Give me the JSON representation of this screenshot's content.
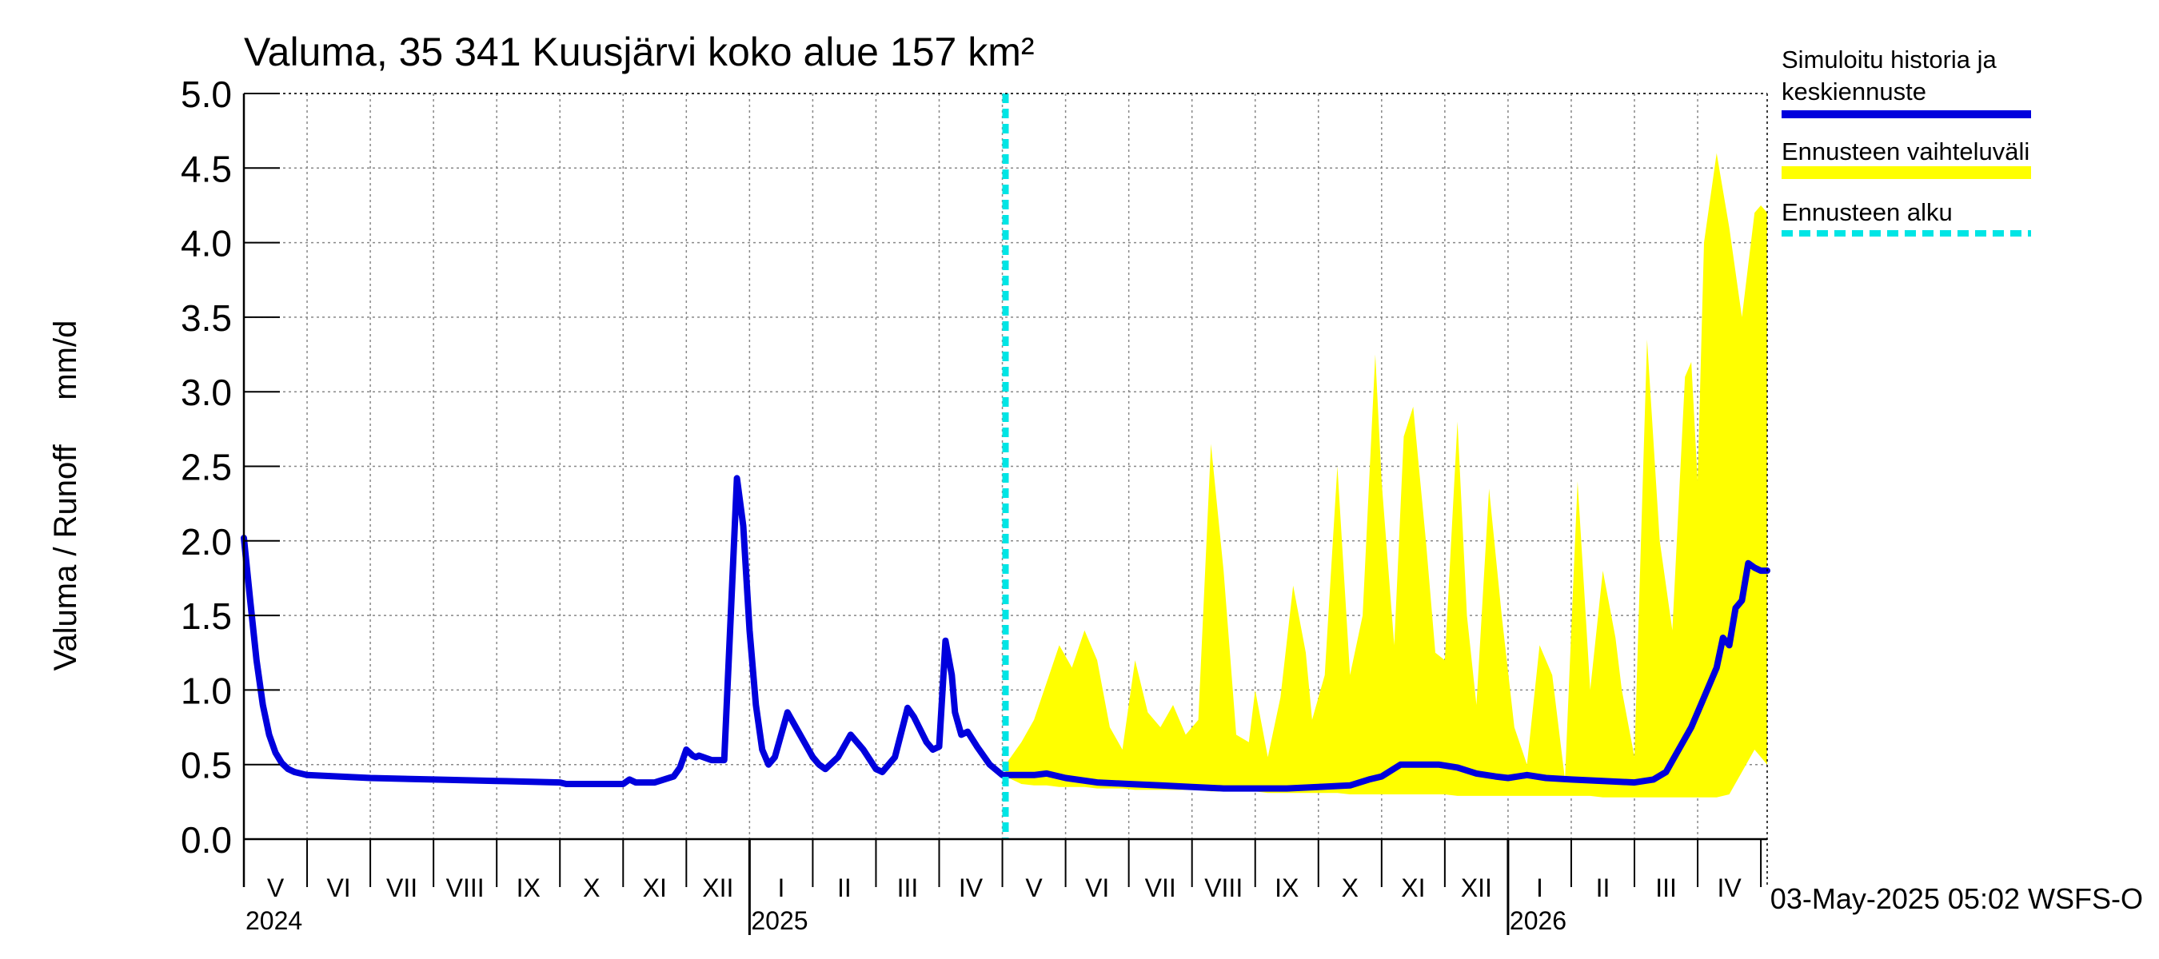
{
  "chart_data": {
    "type": "area",
    "title": "Valuma, 35 341 Kuusjärvi koko alue 157 km²",
    "ylabel": "Valuma / Runoff     mm/d",
    "xlabel": "",
    "ylim": [
      0,
      5.0
    ],
    "yticks": [
      "0.0",
      "0.5",
      "1.0",
      "1.5",
      "2.0",
      "2.5",
      "3.0",
      "3.5",
      "4.0",
      "4.5",
      "5.0"
    ],
    "grid": true,
    "x_unit": "months since 2024-05-01",
    "xlim": [
      0,
      24.1
    ],
    "month_labels": [
      "V",
      "VI",
      "VII",
      "VIII",
      "IX",
      "X",
      "XI",
      "XII",
      "I",
      "II",
      "III",
      "IV",
      "V",
      "VI",
      "VII",
      "VIII",
      "IX",
      "X",
      "XI",
      "XII",
      "I",
      "II",
      "III",
      "IV"
    ],
    "year_labels": [
      {
        "label": "2024",
        "x": 0
      },
      {
        "label": "2025",
        "x": 8
      },
      {
        "label": "2026",
        "x": 20
      }
    ],
    "forecast_start": 12.05,
    "legend": {
      "position": "right",
      "items": [
        {
          "label_line1": "Simuloitu historia ja",
          "label_line2": "keskiennuste",
          "style": "line",
          "color": "#0000dd"
        },
        {
          "label_line1": "Ennusteen vaihteluväli",
          "label_line2": "",
          "style": "band",
          "color": "#ffff00"
        },
        {
          "label_line1": "Ennusteen alku",
          "label_line2": "",
          "style": "dashed",
          "color": "#00e5e5"
        }
      ]
    },
    "colors": {
      "simulated": "#0000dd",
      "band": "#ffff00",
      "forecast_start": "#00e5e5",
      "grid": "#888888"
    },
    "series": [
      {
        "name": "Simuloitu historia ja keskiennuste",
        "x": [
          0,
          0.1,
          0.2,
          0.3,
          0.4,
          0.5,
          0.6,
          0.7,
          0.8,
          1.0,
          1.5,
          2.0,
          3.0,
          4.0,
          5.0,
          5.1,
          5.3,
          5.5,
          5.8,
          6.0,
          6.1,
          6.2,
          6.5,
          6.8,
          6.9,
          7.0,
          7.05,
          7.1,
          7.15,
          7.2,
          7.4,
          7.6,
          7.8,
          7.9,
          8.0,
          8.1,
          8.2,
          8.3,
          8.4,
          8.6,
          8.8,
          9.0,
          9.1,
          9.2,
          9.4,
          9.6,
          9.8,
          10.0,
          10.1,
          10.3,
          10.5,
          10.6,
          10.8,
          10.9,
          11.0,
          11.1,
          11.2,
          11.25,
          11.35,
          11.45,
          11.6,
          11.8,
          12.0,
          12.2,
          12.5,
          12.7,
          13.0,
          13.5,
          14.0,
          14.5,
          15.0,
          15.5,
          16.0,
          16.5,
          17.0,
          17.5,
          17.8,
          18.0,
          18.3,
          18.6,
          18.9,
          19.2,
          19.5,
          19.8,
          20.0,
          20.3,
          20.6,
          21.0,
          21.5,
          22.0,
          22.3,
          22.5,
          22.7,
          22.9,
          23.1,
          23.3,
          23.4,
          23.5,
          23.6,
          23.7,
          23.8,
          23.9,
          24.0,
          24.1
        ],
        "y": [
          2.02,
          1.6,
          1.2,
          0.9,
          0.7,
          0.58,
          0.51,
          0.47,
          0.45,
          0.43,
          0.42,
          0.41,
          0.4,
          0.39,
          0.38,
          0.37,
          0.37,
          0.37,
          0.37,
          0.37,
          0.4,
          0.38,
          0.38,
          0.42,
          0.48,
          0.6,
          0.58,
          0.56,
          0.55,
          0.56,
          0.53,
          0.53,
          2.42,
          2.1,
          1.4,
          0.9,
          0.6,
          0.5,
          0.55,
          0.85,
          0.7,
          0.55,
          0.5,
          0.47,
          0.55,
          0.7,
          0.6,
          0.47,
          0.45,
          0.55,
          0.88,
          0.82,
          0.65,
          0.6,
          0.62,
          1.33,
          1.1,
          0.85,
          0.7,
          0.72,
          0.62,
          0.5,
          0.43,
          0.43,
          0.43,
          0.44,
          0.41,
          0.38,
          0.37,
          0.36,
          0.35,
          0.34,
          0.34,
          0.34,
          0.35,
          0.36,
          0.4,
          0.42,
          0.5,
          0.5,
          0.5,
          0.48,
          0.44,
          0.42,
          0.41,
          0.43,
          0.41,
          0.4,
          0.39,
          0.38,
          0.4,
          0.45,
          0.6,
          0.75,
          0.95,
          1.15,
          1.35,
          1.3,
          1.55,
          1.6,
          1.85,
          1.82,
          1.8,
          1.8
        ]
      },
      {
        "name": "Ennusteen vaihteluväli",
        "type": "band",
        "x": [
          12.05,
          12.3,
          12.5,
          12.7,
          12.9,
          13.1,
          13.3,
          13.5,
          13.7,
          13.9,
          14.1,
          14.3,
          14.5,
          14.7,
          14.9,
          15.1,
          15.3,
          15.5,
          15.7,
          15.9,
          16.0,
          16.2,
          16.4,
          16.6,
          16.8,
          16.9,
          17.1,
          17.3,
          17.5,
          17.7,
          17.9,
          18.0,
          18.2,
          18.35,
          18.5,
          18.7,
          18.85,
          19.0,
          19.2,
          19.35,
          19.5,
          19.7,
          19.9,
          20.1,
          20.3,
          20.5,
          20.7,
          20.9,
          21.1,
          21.3,
          21.5,
          21.7,
          21.8,
          22.0,
          22.2,
          22.4,
          22.6,
          22.8,
          22.9,
          23.0,
          23.1,
          23.3,
          23.5,
          23.7,
          23.9,
          24.0,
          24.1
        ],
        "upper": [
          0.5,
          0.65,
          0.8,
          1.05,
          1.3,
          1.15,
          1.4,
          1.2,
          0.75,
          0.6,
          1.2,
          0.85,
          0.75,
          0.9,
          0.7,
          0.8,
          2.65,
          1.8,
          0.7,
          0.65,
          1.0,
          0.55,
          0.95,
          1.7,
          1.25,
          0.8,
          1.1,
          2.5,
          1.1,
          1.5,
          3.25,
          2.4,
          1.3,
          2.7,
          2.9,
          2.0,
          1.25,
          1.2,
          2.8,
          1.5,
          0.9,
          2.35,
          1.5,
          0.75,
          0.5,
          1.3,
          1.1,
          0.4,
          2.4,
          1.0,
          1.8,
          1.35,
          1.0,
          0.55,
          3.35,
          2.0,
          1.4,
          3.1,
          3.2,
          2.4,
          4.0,
          4.6,
          4.1,
          3.5,
          4.2,
          4.25,
          4.2
        ],
        "lower": [
          0.42,
          0.37,
          0.36,
          0.36,
          0.35,
          0.35,
          0.35,
          0.34,
          0.34,
          0.34,
          0.33,
          0.33,
          0.33,
          0.33,
          0.33,
          0.33,
          0.32,
          0.32,
          0.32,
          0.32,
          0.32,
          0.31,
          0.31,
          0.31,
          0.31,
          0.31,
          0.31,
          0.31,
          0.3,
          0.3,
          0.3,
          0.3,
          0.3,
          0.3,
          0.3,
          0.3,
          0.3,
          0.3,
          0.29,
          0.29,
          0.29,
          0.29,
          0.29,
          0.29,
          0.29,
          0.29,
          0.29,
          0.29,
          0.29,
          0.29,
          0.28,
          0.28,
          0.28,
          0.28,
          0.28,
          0.28,
          0.28,
          0.28,
          0.28,
          0.28,
          0.28,
          0.28,
          0.3,
          0.45,
          0.6,
          0.55,
          0.5
        ]
      }
    ]
  },
  "footer": {
    "timestamp": "03-May-2025 05:02 WSFS-O"
  }
}
